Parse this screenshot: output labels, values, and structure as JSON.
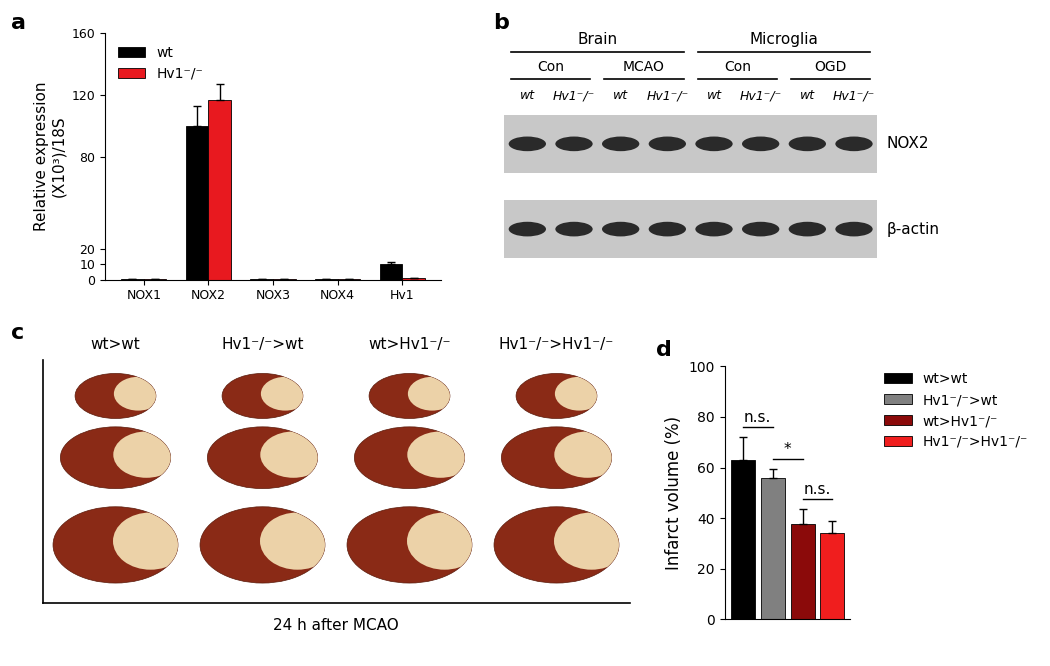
{
  "chart_data": [
    {
      "panel_label": "a",
      "type": "bar",
      "ylabel": "Relative expression\n(X10³)/18S",
      "categories": [
        "NOX1",
        "NOX2",
        "NOX3",
        "NOX4",
        "Hv1"
      ],
      "series": [
        {
          "name": "wt",
          "color": "#000000",
          "values": [
            0.3,
            100,
            0.2,
            0.3,
            10.5
          ],
          "errors": [
            0.1,
            13,
            0.05,
            0.1,
            0.8
          ]
        },
        {
          "name": "Hv1⁻/⁻",
          "color": "#e8191f",
          "values": [
            0.5,
            117,
            0.2,
            0.2,
            0.8
          ],
          "errors": [
            0.2,
            10,
            0.05,
            0.1,
            0.2
          ]
        }
      ],
      "ylim": [
        0,
        160
      ],
      "yticks": [
        0,
        10,
        20,
        80,
        120,
        160
      ],
      "legend": "upper left"
    },
    {
      "panel_label": "d",
      "type": "bar",
      "ylabel": "Infarct volume (%)",
      "categories": [
        null,
        null,
        null,
        null
      ],
      "series": [
        {
          "name": "wt>wt",
          "color": "#000000",
          "values": [
            63,
            null,
            null,
            null
          ],
          "errors": [
            9,
            null,
            null,
            null
          ]
        },
        {
          "name": "Hv1⁻/⁻>wt",
          "color": "#808080",
          "values": [
            null,
            56,
            null,
            null
          ],
          "errors": [
            null,
            3.5,
            null,
            null
          ]
        },
        {
          "name": "wt>Hv1⁻/⁻",
          "color": "#8b0a0a",
          "values": [
            null,
            null,
            37.5,
            null
          ],
          "errors": [
            null,
            null,
            6,
            null
          ]
        },
        {
          "name": "Hv1⁻/⁻>Hv1⁻/⁻",
          "color": "#f01e1e",
          "values": [
            null,
            null,
            null,
            34
          ],
          "errors": [
            null,
            null,
            null,
            5
          ]
        }
      ],
      "ylim": [
        0,
        100
      ],
      "yticks": [
        0,
        20,
        40,
        60,
        80,
        100
      ],
      "legend": "upper left",
      "annotations": [
        {
          "text": "n.s.",
          "between": [
            0,
            1
          ]
        },
        {
          "text": "*",
          "between": [
            1,
            2
          ]
        },
        {
          "text": "n.s.",
          "between": [
            2,
            3
          ]
        }
      ]
    }
  ],
  "blot": {
    "panel_label": "b",
    "groups": [
      {
        "label": "Brain",
        "conditions": [
          "Con",
          "MCAO"
        ]
      },
      {
        "label": "Microglia",
        "conditions": [
          "Con",
          "OGD"
        ]
      }
    ],
    "lanes": [
      "wt",
      "Hv1⁻/⁻"
    ],
    "bands": [
      "NOX2",
      "β-actin"
    ]
  },
  "brain_slices": {
    "panel_label": "c",
    "groups": [
      "wt>wt",
      "Hv1⁻/⁻>wt",
      "wt>Hv1⁻/⁻",
      "Hv1⁻/⁻>Hv1⁻/⁻"
    ],
    "caption": "24 h after MCAO"
  }
}
